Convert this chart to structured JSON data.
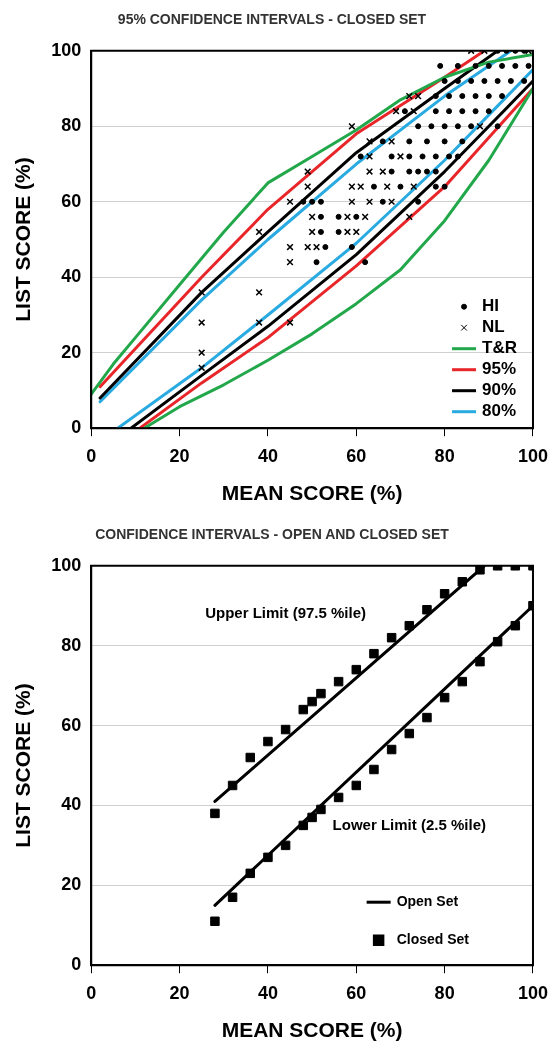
{
  "chart_data": [
    {
      "type": "scatter",
      "title": "95% CONFIDENCE INTERVALS - CLOSED SET",
      "xlabel": "MEAN SCORE (%)",
      "ylabel": "LIST SCORE (%)",
      "xlim": [
        0,
        100
      ],
      "ylim": [
        0,
        100
      ],
      "xticks": [
        0,
        20,
        40,
        60,
        80,
        100
      ],
      "yticks": [
        0,
        20,
        40,
        60,
        80,
        100
      ],
      "grid": "y",
      "legend": "bottom right",
      "series": [
        {
          "name": "HI",
          "type": "scatter",
          "marker": "circle",
          "color": "#000000",
          "x": [
            51,
            62,
            53,
            59,
            52,
            56,
            52,
            56,
            60,
            48,
            50,
            52,
            66,
            74,
            64,
            70,
            78,
            80,
            68,
            72,
            74,
            76,
            78,
            61,
            68,
            72,
            75,
            78,
            81,
            83,
            66,
            72,
            76,
            80,
            84,
            74,
            77,
            80,
            83,
            86,
            92,
            71,
            78,
            81,
            84,
            87,
            90,
            78,
            81,
            84,
            87,
            90,
            93,
            80,
            83,
            86,
            89,
            92,
            95,
            98,
            79,
            83,
            87,
            90,
            93,
            96,
            99,
            92,
            94,
            96,
            98
          ],
          "values": [
            44,
            44,
            48,
            48,
            52,
            52,
            56,
            56,
            56,
            60,
            60,
            60,
            60,
            60,
            64,
            64,
            64,
            64,
            68,
            68,
            68,
            68,
            68,
            72,
            72,
            72,
            72,
            72,
            72,
            72,
            76,
            76,
            76,
            76,
            76,
            80,
            80,
            80,
            80,
            80,
            80,
            84,
            84,
            84,
            84,
            84,
            84,
            88,
            88,
            88,
            88,
            88,
            88,
            92,
            92,
            92,
            92,
            92,
            92,
            92,
            96,
            96,
            96,
            96,
            96,
            96,
            96,
            100,
            100,
            100,
            100
          ]
        },
        {
          "name": "NL",
          "type": "scatter",
          "marker": "cross",
          "color": "#000000",
          "x": [
            25,
            25,
            25,
            25,
            38,
            38,
            38,
            45,
            45,
            45,
            49,
            51,
            50,
            58,
            60,
            50,
            58,
            62,
            72,
            45,
            59,
            63,
            68,
            49,
            59,
            61,
            67,
            73,
            49,
            63,
            66,
            63,
            70,
            63,
            68,
            59,
            88,
            69,
            73,
            72,
            74,
            86,
            89,
            99
          ],
          "values": [
            36,
            28,
            20,
            16,
            36,
            52,
            28,
            28,
            44,
            48,
            48,
            48,
            52,
            52,
            52,
            56,
            56,
            56,
            56,
            60,
            60,
            60,
            60,
            64,
            64,
            64,
            64,
            64,
            68,
            68,
            68,
            72,
            72,
            76,
            76,
            80,
            80,
            84,
            84,
            88,
            88,
            100,
            100,
            100
          ]
        },
        {
          "name": "T&R",
          "type": "line",
          "marker": "none",
          "color": "#22a84a",
          "x": [
            0,
            5,
            10,
            20,
            30,
            40,
            50,
            60,
            70,
            80,
            90,
            100
          ],
          "values": [
            9,
            17,
            24,
            38,
            52,
            65,
            72,
            79,
            87,
            93,
            97,
            99
          ]
        },
        {
          "type": "line",
          "marker": "none",
          "color": "#22a84a",
          "x": [
            12,
            20,
            30,
            40,
            50,
            60,
            70,
            80,
            90,
            100
          ],
          "values": [
            0,
            5.7,
            11.5,
            18,
            25,
            33,
            42,
            55,
            71,
            90
          ]
        },
        {
          "name": "95%",
          "type": "line",
          "marker": "none",
          "color": "#e8262a",
          "x": [
            2,
            25,
            40,
            60,
            80,
            89
          ],
          "values": [
            11,
            40,
            58,
            78,
            93,
            100
          ]
        },
        {
          "type": "line",
          "marker": "none",
          "color": "#e8262a",
          "x": [
            11,
            25,
            40,
            60,
            80,
            100
          ],
          "values": [
            0,
            12,
            24,
            43,
            64,
            90
          ]
        },
        {
          "name": "90%",
          "type": "line",
          "marker": "none",
          "color": "#000000",
          "x": [
            2,
            25,
            40,
            60,
            80,
            92
          ],
          "values": [
            8,
            36,
            52,
            73,
            90,
            100
          ]
        },
        {
          "type": "line",
          "marker": "none",
          "color": "#000000",
          "x": [
            9,
            25,
            40,
            60,
            80,
            100
          ],
          "values": [
            0,
            14,
            27,
            46,
            68,
            92
          ]
        },
        {
          "name": "80%",
          "type": "line",
          "marker": "none",
          "color": "#29abe2",
          "x": [
            2,
            25,
            40,
            60,
            80,
            95
          ],
          "values": [
            7,
            34,
            50,
            70,
            88,
            100
          ]
        },
        {
          "type": "line",
          "marker": "none",
          "color": "#29abe2",
          "x": [
            6,
            25,
            40,
            60,
            80,
            100
          ],
          "values": [
            0,
            16,
            30,
            49,
            71,
            95
          ]
        }
      ]
    },
    {
      "type": "scatter",
      "title": "CONFIDENCE INTERVALS - OPEN AND CLOSED SET",
      "xlabel": "MEAN SCORE (%)",
      "ylabel": "LIST SCORE (%)",
      "xlim": [
        0,
        100
      ],
      "ylim": [
        0,
        100
      ],
      "xticks": [
        0,
        20,
        40,
        60,
        80,
        100
      ],
      "yticks": [
        0,
        20,
        40,
        60,
        80,
        100
      ],
      "grid": "y",
      "legend": "bottom right",
      "annotations": [
        "Upper Limit (97.5 %ile)",
        "Lower Limit (2.5 %ile)"
      ],
      "series": [
        {
          "name": "Open Set",
          "type": "line",
          "marker": "none",
          "color": "#000000",
          "x": [
            28,
            89
          ],
          "values": [
            41,
            100
          ]
        },
        {
          "type": "line",
          "marker": "none",
          "color": "#000000",
          "x": [
            28,
            100
          ],
          "values": [
            15,
            90
          ]
        },
        {
          "name": "Closed Set",
          "type": "scatter",
          "marker": "square",
          "color": "#000000",
          "x": [
            28,
            32,
            36,
            40,
            44,
            48,
            50,
            52,
            56,
            60,
            64,
            68,
            72,
            76,
            80,
            84,
            88,
            92,
            96,
            100,
            28,
            32,
            36,
            40,
            44,
            48,
            50,
            52,
            56,
            60,
            64,
            68,
            72,
            76,
            80,
            84,
            88,
            92,
            96,
            100
          ],
          "values": [
            38,
            45,
            52,
            56,
            59,
            64,
            66,
            68,
            71,
            74,
            78,
            82,
            85,
            89,
            93,
            96,
            99,
            100,
            100,
            100,
            11,
            17,
            23,
            27,
            30,
            35,
            37,
            39,
            42,
            45,
            49,
            54,
            58,
            62,
            67,
            71,
            76,
            81,
            85,
            90
          ]
        }
      ]
    }
  ]
}
